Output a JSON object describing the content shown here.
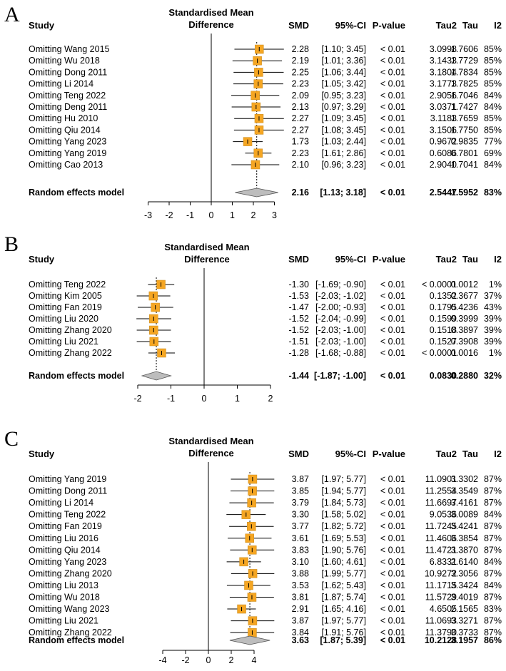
{
  "chart_data": [
    {
      "type": "forest",
      "panel": "A",
      "title": "Standardised Mean Difference",
      "title_lines": [
        "Standardised Mean",
        "Difference"
      ],
      "columns": [
        "Study",
        "SMD",
        "95%-CI",
        "P-value",
        "Tau2",
        "Tau",
        "I2"
      ],
      "xlim": [
        -3,
        3
      ],
      "ticks": [
        -3,
        -2,
        -1,
        0,
        1,
        2,
        3
      ],
      "rows": [
        {
          "study": "Omitting Wang 2015",
          "smd": 2.28,
          "lo": 1.1,
          "hi": 3.45,
          "ci": "[1.10; 3.45]",
          "p": "< 0.01",
          "tau2": "3.0998",
          "tau": "1.7606",
          "i2": "85%"
        },
        {
          "study": "Omitting Wu 2018",
          "smd": 2.19,
          "lo": 1.01,
          "hi": 3.36,
          "ci": "[1.01; 3.36]",
          "p": "< 0.01",
          "tau2": "3.1433",
          "tau": "1.7729",
          "i2": "85%"
        },
        {
          "study": "Omitting Dong 2011",
          "smd": 2.25,
          "lo": 1.06,
          "hi": 3.44,
          "ci": "[1.06; 3.44]",
          "p": "< 0.01",
          "tau2": "3.1804",
          "tau": "1.7834",
          "i2": "85%"
        },
        {
          "study": "Omitting Li 2014",
          "smd": 2.23,
          "lo": 1.05,
          "hi": 3.42,
          "ci": "[1.05; 3.42]",
          "p": "< 0.01",
          "tau2": "3.1773",
          "tau": "1.7825",
          "i2": "85%"
        },
        {
          "study": "Omitting Teng 2022",
          "smd": 2.09,
          "lo": 0.95,
          "hi": 3.23,
          "ci": "[0.95; 3.23]",
          "p": "< 0.01",
          "tau2": "2.9056",
          "tau": "1.7046",
          "i2": "84%"
        },
        {
          "study": "Omitting Deng  2011",
          "smd": 2.13,
          "lo": 0.97,
          "hi": 3.29,
          "ci": "[0.97; 3.29]",
          "p": "< 0.01",
          "tau2": "3.0371",
          "tau": "1.7427",
          "i2": "84%"
        },
        {
          "study": "Omitting Hu 2010",
          "smd": 2.27,
          "lo": 1.09,
          "hi": 3.45,
          "ci": "[1.09; 3.45]",
          "p": "< 0.01",
          "tau2": "3.1183",
          "tau": "1.7659",
          "i2": "85%"
        },
        {
          "study": "Omitting Qiu 2014",
          "smd": 2.27,
          "lo": 1.08,
          "hi": 3.45,
          "ci": "[1.08; 3.45]",
          "p": "< 0.01",
          "tau2": "3.1506",
          "tau": "1.7750",
          "i2": "85%"
        },
        {
          "study": "Omitting Yang 2023",
          "smd": 1.73,
          "lo": 1.03,
          "hi": 2.44,
          "ci": "[1.03; 2.44]",
          "p": "< 0.01",
          "tau2": "0.9672",
          "tau": "0.9835",
          "i2": "77%"
        },
        {
          "study": "Omitting Yang 2019",
          "smd": 2.23,
          "lo": 1.61,
          "hi": 2.86,
          "ci": "[1.61; 2.86]",
          "p": "< 0.01",
          "tau2": "0.6086",
          "tau": "0.7801",
          "i2": "69%"
        },
        {
          "study": "Omitting Cao 2013",
          "smd": 2.1,
          "lo": 0.96,
          "hi": 3.23,
          "ci": "[0.96; 3.23]",
          "p": "< 0.01",
          "tau2": "2.9040",
          "tau": "1.7041",
          "i2": "84%"
        }
      ],
      "summary": {
        "label": "Random effects model",
        "smd": 2.16,
        "lo": 1.13,
        "hi": 3.18,
        "ci": "[1.13; 3.18]",
        "p": "< 0.01",
        "tau2": "2.5447",
        "tau": "1.5952",
        "i2": "83%"
      }
    },
    {
      "type": "forest",
      "panel": "B",
      "title": "Standardised Mean Difference",
      "title_lines": [
        "Standardised Mean",
        "Difference"
      ],
      "columns": [
        "Study",
        "SMD",
        "95%-CI",
        "P-value",
        "Tau2",
        "Tau",
        "I2"
      ],
      "xlim": [
        -2,
        2
      ],
      "ticks": [
        -2,
        -1,
        0,
        1,
        2
      ],
      "rows": [
        {
          "study": "Omitting Teng 2022",
          "smd": -1.3,
          "lo": -1.69,
          "hi": -0.9,
          "ci": "[-1.69; -0.90]",
          "p": "< 0.01",
          "tau2": "< 0.0001",
          "tau": "0.0012",
          "i2": "1%"
        },
        {
          "study": "Omitting Kim 2005",
          "smd": -1.53,
          "lo": -2.03,
          "hi": -1.02,
          "ci": "[-2.03; -1.02]",
          "p": "< 0.01",
          "tau2": "0.1352",
          "tau": "0.3677",
          "i2": "37%"
        },
        {
          "study": "Omitting Fan 2019",
          "smd": -1.47,
          "lo": -2.0,
          "hi": -0.93,
          "ci": "[-2.00; -0.93]",
          "p": "< 0.01",
          "tau2": "0.1795",
          "tau": "0.4236",
          "i2": "43%"
        },
        {
          "study": "Omitting Liu 2020",
          "smd": -1.52,
          "lo": -2.04,
          "hi": -0.99,
          "ci": "[-2.04; -0.99]",
          "p": "< 0.01",
          "tau2": "0.1599",
          "tau": "0.3999",
          "i2": "39%"
        },
        {
          "study": "Omitting Zhang 2020",
          "smd": -1.52,
          "lo": -2.03,
          "hi": -1.0,
          "ci": "[-2.03; -1.00]",
          "p": "< 0.01",
          "tau2": "0.1518",
          "tau": "0.3897",
          "i2": "39%"
        },
        {
          "study": "Omitting Liu 2021",
          "smd": -1.51,
          "lo": -2.03,
          "hi": -1.0,
          "ci": "[-2.03; -1.00]",
          "p": "< 0.01",
          "tau2": "0.1527",
          "tau": "0.3908",
          "i2": "39%"
        },
        {
          "study": "Omitting Zhang 2022",
          "smd": -1.28,
          "lo": -1.68,
          "hi": -0.88,
          "ci": "[-1.68; -0.88]",
          "p": "< 0.01",
          "tau2": "< 0.0001",
          "tau": "0.0016",
          "i2": "1%"
        }
      ],
      "summary": {
        "label": "Random effects model",
        "smd": -1.44,
        "lo": -1.87,
        "hi": -1.0,
        "ci": "[-1.87; -1.00]",
        "p": "< 0.01",
        "tau2": "0.0830",
        "tau": "0.2880",
        "i2": "32%"
      }
    },
    {
      "type": "forest",
      "panel": "C",
      "title": "Standardised Mean Difference",
      "title_lines": [
        "Standardised Mean",
        "Difference"
      ],
      "columns": [
        "Study",
        "SMD",
        "95%-CI",
        "P-value",
        "Tau2",
        "Tau",
        "I2"
      ],
      "xlim": [
        -4,
        4
      ],
      "ticks": [
        -4,
        -2,
        0,
        2,
        4
      ],
      "rows": [
        {
          "study": "Omitting Yang 2019",
          "smd": 3.87,
          "lo": 1.97,
          "hi": 5.77,
          "ci": "[1.97; 5.77]",
          "p": "< 0.01",
          "tau2": "11.0901",
          "tau": "3.3302",
          "i2": "87%"
        },
        {
          "study": "Omitting Dong 2011",
          "smd": 3.85,
          "lo": 1.94,
          "hi": 5.77,
          "ci": "[1.94; 5.77]",
          "p": "< 0.01",
          "tau2": "11.2554",
          "tau": "3.3549",
          "i2": "87%"
        },
        {
          "study": "Omitting Li 2014",
          "smd": 3.79,
          "lo": 1.84,
          "hi": 5.73,
          "ci": "[1.84; 5.73]",
          "p": "< 0.01",
          "tau2": "11.6697",
          "tau": "3.4161",
          "i2": "87%"
        },
        {
          "study": "Omitting Teng 2022",
          "smd": 3.3,
          "lo": 1.58,
          "hi": 5.02,
          "ci": "[1.58; 5.02]",
          "p": "< 0.01",
          "tau2": "9.0536",
          "tau": "3.0089",
          "i2": "84%"
        },
        {
          "study": "Omitting Fan 2019",
          "smd": 3.77,
          "lo": 1.82,
          "hi": 5.72,
          "ci": "[1.82; 5.72]",
          "p": "< 0.01",
          "tau2": "11.7245",
          "tau": "3.4241",
          "i2": "87%"
        },
        {
          "study": "Omitting Liu 2016",
          "smd": 3.61,
          "lo": 1.69,
          "hi": 5.53,
          "ci": "[1.69; 5.53]",
          "p": "< 0.01",
          "tau2": "11.4606",
          "tau": "3.3854",
          "i2": "87%"
        },
        {
          "study": "Omitting Qiu 2014",
          "smd": 3.83,
          "lo": 1.9,
          "hi": 5.76,
          "ci": "[1.90; 5.76]",
          "p": "< 0.01",
          "tau2": "11.4721",
          "tau": "3.3870",
          "i2": "87%"
        },
        {
          "study": "Omitting Yang 2023",
          "smd": 3.1,
          "lo": 1.6,
          "hi": 4.61,
          "ci": "[1.60; 4.61]",
          "p": "< 0.01",
          "tau2": "6.8331",
          "tau": "2.6140",
          "i2": "84%"
        },
        {
          "study": "Omitting Zhang 2020",
          "smd": 3.88,
          "lo": 1.99,
          "hi": 5.77,
          "ci": "[1.99; 5.77]",
          "p": "< 0.01",
          "tau2": "10.9272",
          "tau": "3.3056",
          "i2": "87%"
        },
        {
          "study": "Omitting Liu 2013",
          "smd": 3.53,
          "lo": 1.62,
          "hi": 5.43,
          "ci": "[1.62; 5.43]",
          "p": "< 0.01",
          "tau2": "11.1715",
          "tau": "3.3424",
          "i2": "84%"
        },
        {
          "study": "Omitting Wu 2018",
          "smd": 3.81,
          "lo": 1.87,
          "hi": 5.74,
          "ci": "[1.87; 5.74]",
          "p": "< 0.01",
          "tau2": "11.5729",
          "tau": "3.4019",
          "i2": "87%"
        },
        {
          "study": "Omitting Wang 2023",
          "smd": 2.91,
          "lo": 1.65,
          "hi": 4.16,
          "ci": "[1.65; 4.16]",
          "p": "< 0.01",
          "tau2": "4.6505",
          "tau": "2.1565",
          "i2": "83%"
        },
        {
          "study": "Omitting Liu 2021",
          "smd": 3.87,
          "lo": 1.97,
          "hi": 5.77,
          "ci": "[1.97; 5.77]",
          "p": "< 0.01",
          "tau2": "11.0693",
          "tau": "3.3271",
          "i2": "87%"
        },
        {
          "study": "Omitting Zhang 2022",
          "smd": 3.84,
          "lo": 1.91,
          "hi": 5.76,
          "ci": "[1.91; 5.76]",
          "p": "< 0.01",
          "tau2": "11.3790",
          "tau": "3.3733",
          "i2": "87%"
        }
      ],
      "summary": {
        "label": "Random effects model",
        "smd": 3.63,
        "lo": 1.87,
        "hi": 5.39,
        "ci": "[1.87; 5.39]",
        "p": "< 0.01",
        "tau2": "10.2128",
        "tau": "3.1957",
        "i2": "86%"
      }
    }
  ],
  "colors": {
    "box": "#F5A623",
    "box_stroke": "#C78A1E",
    "diamond": "#BDBDBD",
    "line": "#000000",
    "dotted": "#000000"
  }
}
